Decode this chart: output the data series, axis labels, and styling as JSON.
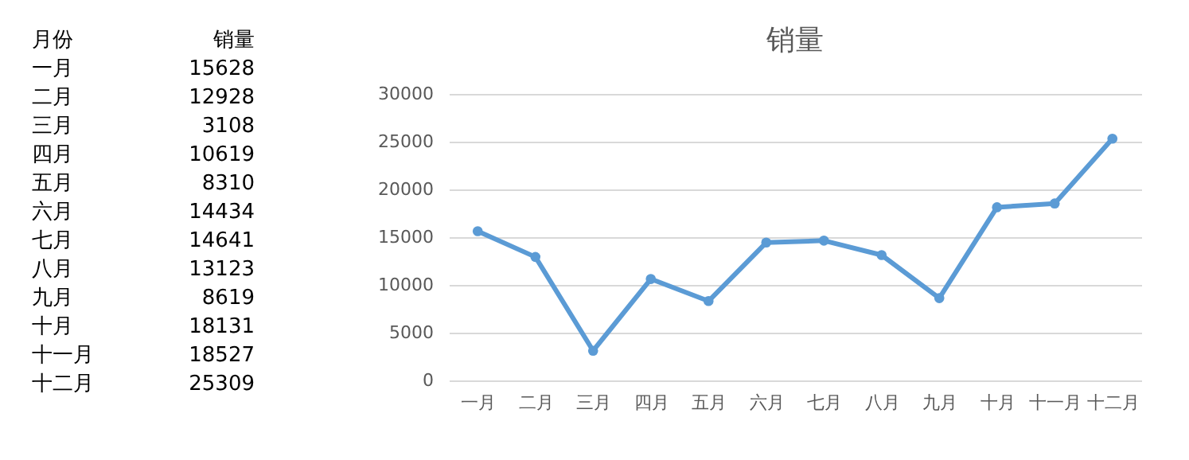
{
  "chart_data": [
    {
      "type": "other",
      "annotations": [
        "月份",
        "销量"
      ],
      "categories": [
        "一月",
        "二月",
        "三月",
        "四月",
        "五月",
        "六月",
        "七月",
        "八月",
        "九月",
        "十月",
        "十一月",
        "十二月"
      ],
      "values": [
        15628,
        12928,
        3108,
        10619,
        8310,
        14434,
        14641,
        13123,
        8619,
        18131,
        18527,
        25309
      ],
      "data_labels": true
    },
    {
      "type": "line",
      "title": "销量",
      "categories": [
        "一月",
        "二月",
        "三月",
        "四月",
        "五月",
        "六月",
        "七月",
        "八月",
        "九月",
        "十月",
        "十一月",
        "十二月"
      ],
      "series": [
        {
          "color": "#5b9bd5",
          "values": [
            15628,
            12928,
            3108,
            10619,
            8310,
            14434,
            14641,
            13123,
            8619,
            18131,
            18527,
            25309
          ]
        }
      ],
      "ylim": [
        0,
        30000
      ],
      "yticks": [
        0,
        5000,
        10000,
        15000,
        20000,
        25000,
        30000
      ],
      "grid": "y",
      "marker": "circle",
      "line_style": "solid"
    }
  ]
}
